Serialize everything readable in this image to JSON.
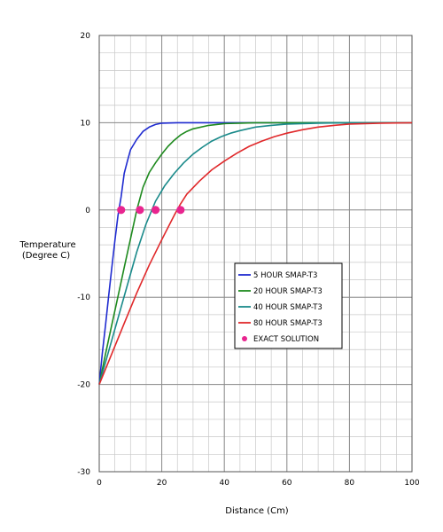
{
  "chart_data": {
    "type": "line",
    "title": "",
    "xlabel": "Distance (Cm)",
    "ylabel_lines": [
      "Temperature",
      "(Degree C)"
    ],
    "xlim": [
      0,
      100
    ],
    "ylim": [
      -30,
      20
    ],
    "x_ticks": [
      0,
      20,
      40,
      60,
      80,
      100
    ],
    "y_ticks": [
      -30,
      -20,
      -10,
      0,
      10,
      20
    ],
    "grid": true,
    "legend_position": "center-right",
    "series": [
      {
        "name": "5 HOUR  SMAP-T3",
        "color": "#1f2bd0",
        "x": [
          0,
          1,
          2,
          3,
          4,
          5,
          6,
          7,
          8,
          9,
          10,
          12,
          14,
          16,
          18,
          20,
          25,
          30,
          40,
          60,
          80,
          100
        ],
        "y": [
          -20,
          -16.4,
          -13.2,
          -9.9,
          -6.7,
          -3.5,
          -0.6,
          1.5,
          4.2,
          5.6,
          6.9,
          8.1,
          9.0,
          9.5,
          9.8,
          9.95,
          10,
          10,
          10,
          10,
          10,
          10
        ]
      },
      {
        "name": "20 HOUR  SMAP-T3",
        "color": "#1e8a1e",
        "x": [
          0,
          2,
          4,
          6,
          8,
          10,
          12,
          14,
          16,
          18,
          20,
          22,
          24,
          26,
          28,
          30,
          35,
          40,
          45,
          50,
          60,
          80,
          100
        ],
        "y": [
          -20,
          -16.5,
          -13.2,
          -9.9,
          -6.6,
          -3.3,
          0,
          2.6,
          4.3,
          5.4,
          6.4,
          7.3,
          8.0,
          8.6,
          9.0,
          9.3,
          9.7,
          9.9,
          9.95,
          10,
          10,
          10,
          10
        ]
      },
      {
        "name": "40 HOUR  SMAP-T3",
        "color": "#1a8a8a",
        "x": [
          0,
          3,
          6,
          9,
          12,
          15,
          18,
          21,
          24,
          27,
          30,
          33,
          36,
          39,
          42,
          45,
          50,
          55,
          60,
          70,
          80,
          100
        ],
        "y": [
          -20,
          -16.2,
          -12.4,
          -8.6,
          -4.8,
          -1.6,
          1.0,
          2.8,
          4.2,
          5.4,
          6.4,
          7.2,
          7.9,
          8.4,
          8.8,
          9.1,
          9.5,
          9.7,
          9.85,
          9.95,
          10,
          10
        ]
      },
      {
        "name": "80 HOUR  SMAP-T3",
        "color": "#e0282a",
        "x": [
          0,
          4,
          8,
          12,
          16,
          20,
          24,
          26,
          28,
          32,
          36,
          40,
          44,
          48,
          52,
          56,
          60,
          65,
          70,
          75,
          80,
          90,
          100
        ],
        "y": [
          -20,
          -16.5,
          -13.0,
          -9.5,
          -6.3,
          -3.4,
          -0.6,
          0.7,
          1.8,
          3.3,
          4.6,
          5.6,
          6.5,
          7.3,
          7.9,
          8.4,
          8.8,
          9.2,
          9.5,
          9.7,
          9.85,
          9.95,
          10
        ]
      }
    ],
    "markers": {
      "name": "EXACT SOLUTION",
      "color": "#e8258f",
      "x": [
        7,
        13,
        18,
        26
      ],
      "y": [
        0,
        0,
        0,
        0
      ]
    }
  }
}
